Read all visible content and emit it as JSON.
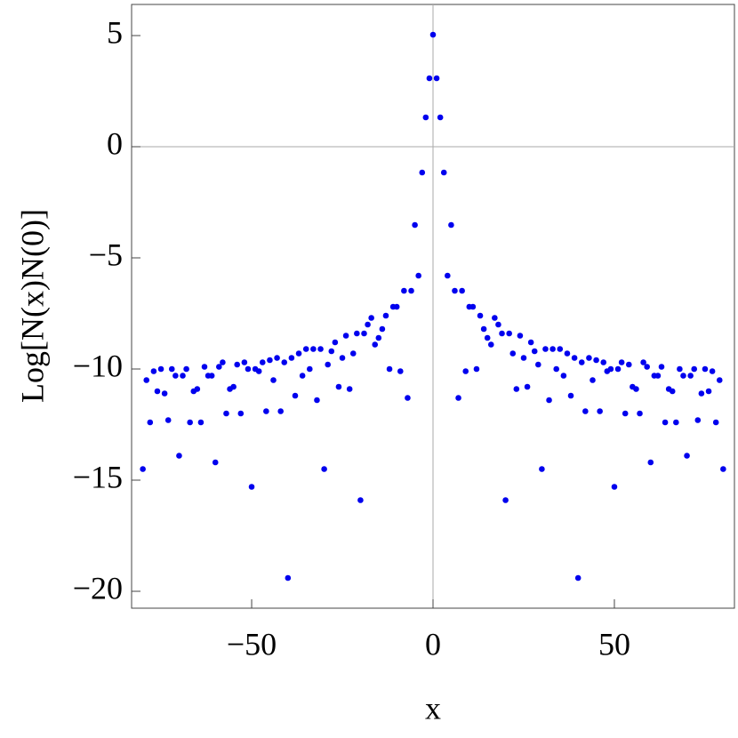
{
  "chart_data": {
    "type": "scatter",
    "xlabel": "x",
    "ylabel": "Log[N(x)N(0)]",
    "color": "#0000ee",
    "x": [
      -80,
      -79,
      -78,
      -77,
      -76,
      -75,
      -74,
      -73,
      -72,
      -71,
      -70,
      -69,
      -68,
      -67,
      -66,
      -65,
      -64,
      -63,
      -62,
      -61,
      -60,
      -59,
      -58,
      -57,
      -56,
      -55,
      -54,
      -53,
      -52,
      -51,
      -50,
      -49,
      -48,
      -47,
      -46,
      -45,
      -44,
      -43,
      -42,
      -41,
      -40,
      -39,
      -38,
      -37,
      -36,
      -35,
      -34,
      -33,
      -32,
      -31,
      -30,
      -29,
      -28,
      -27,
      -26,
      -25,
      -24,
      -23,
      -22,
      -21,
      -20,
      -19,
      -18,
      -17,
      -16,
      -15,
      -14,
      -13,
      -12,
      -11,
      -10,
      -9,
      -8,
      -7,
      -6,
      -5,
      -4,
      -3,
      -2,
      -1,
      0,
      1,
      2,
      3,
      4,
      5,
      6,
      7,
      8,
      9,
      10,
      11,
      12,
      13,
      14,
      15,
      16,
      17,
      18,
      19,
      20,
      21,
      22,
      23,
      24,
      25,
      26,
      27,
      28,
      29,
      30,
      31,
      32,
      33,
      34,
      35,
      36,
      37,
      38,
      39,
      40,
      41,
      42,
      43,
      44,
      45,
      46,
      47,
      48,
      49,
      50,
      51,
      52,
      53,
      54,
      55,
      56,
      57,
      58,
      59,
      60,
      61,
      62,
      63,
      64,
      65,
      66,
      67,
      68,
      69,
      70,
      71,
      72,
      73,
      74,
      75,
      76,
      77,
      78,
      79,
      80
    ],
    "values": [
      -14.5,
      -10.5,
      -12.4,
      -10.1,
      -11.0,
      -10.0,
      -11.1,
      -12.3,
      -10.0,
      -10.3,
      -13.9,
      -10.3,
      -10.0,
      -12.4,
      -11.0,
      -10.9,
      -12.4,
      -9.9,
      -10.3,
      -10.3,
      -14.2,
      -9.9,
      -9.7,
      -12.0,
      -10.9,
      -10.8,
      -9.8,
      -12.0,
      -9.7,
      -10.0,
      -15.3,
      -10.0,
      -10.1,
      -9.7,
      -11.9,
      -9.6,
      -10.5,
      -9.5,
      -11.9,
      -9.7,
      -19.4,
      -9.5,
      -11.2,
      -9.3,
      -10.3,
      -9.1,
      -10.0,
      -9.1,
      -11.4,
      -9.1,
      -14.5,
      -9.8,
      -9.2,
      -8.8,
      -10.8,
      -9.5,
      -8.5,
      -10.9,
      -9.3,
      -8.4,
      -15.9,
      -8.4,
      -8.0,
      -7.7,
      -8.9,
      -8.6,
      -8.2,
      -7.6,
      -10.0,
      -7.2,
      -7.2,
      -10.1,
      -6.48,
      -11.3,
      -6.48,
      -3.52,
      -5.8,
      -1.16,
      1.32,
      3.08,
      5.04,
      3.08,
      1.32,
      -1.16,
      -5.8,
      -3.52,
      -6.48,
      -11.3,
      -6.48,
      -10.1,
      -7.2,
      -7.2,
      -10.0,
      -7.6,
      -8.2,
      -8.6,
      -8.9,
      -7.7,
      -8.0,
      -8.4,
      -15.9,
      -8.4,
      -9.3,
      -10.9,
      -8.5,
      -9.5,
      -10.8,
      -8.8,
      -9.2,
      -9.8,
      -14.5,
      -9.1,
      -11.4,
      -9.1,
      -10.0,
      -9.1,
      -10.3,
      -9.3,
      -11.2,
      -9.5,
      -19.4,
      -9.7,
      -11.9,
      -9.5,
      -10.5,
      -9.6,
      -11.9,
      -9.7,
      -10.1,
      -10.0,
      -15.3,
      -10.0,
      -9.7,
      -12.0,
      -9.8,
      -10.8,
      -10.9,
      -12.0,
      -9.7,
      -9.9,
      -14.2,
      -10.3,
      -10.3,
      -9.9,
      -12.4,
      -10.9,
      -11.0,
      -12.4,
      -10.0,
      -10.3,
      -13.9,
      -10.3,
      -10.0,
      -12.3,
      -11.1,
      -10.0,
      -11.0,
      -10.1,
      -12.4,
      -10.5,
      -14.5
    ],
    "xlim": [
      -83.1,
      83.1
    ],
    "ylim": [
      -20.76,
      6.4
    ],
    "xticks": [
      {
        "value": -50,
        "label": "−50"
      },
      0,
      50
    ],
    "yticks": [
      {
        "value": -20,
        "label": "−20"
      },
      {
        "value": -15,
        "label": "−15"
      },
      {
        "value": -10,
        "label": "−10"
      },
      {
        "value": -5,
        "label": "−5"
      },
      0,
      5
    ],
    "axes_at_zero": true
  }
}
